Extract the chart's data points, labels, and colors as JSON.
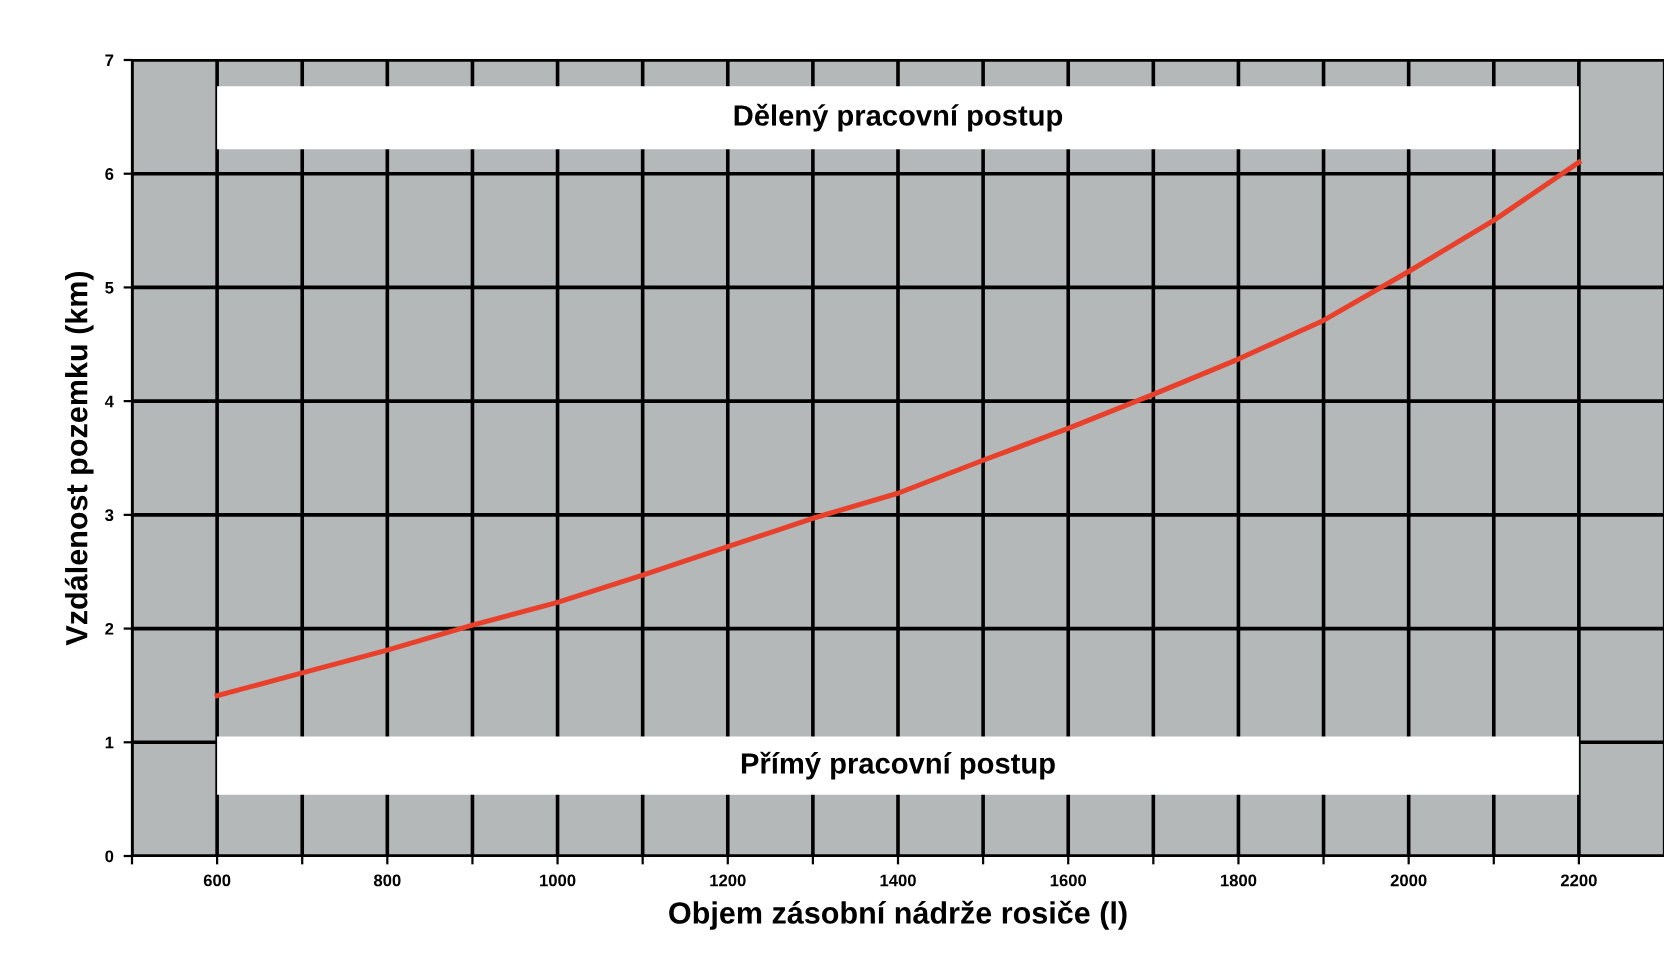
{
  "chart_data": {
    "type": "line",
    "xlabel": "Objem zásobní nádrže rosiče (l)",
    "ylabel": "Vzdálenost pozemku (km)",
    "x": [
      600,
      700,
      800,
      900,
      1000,
      1100,
      1200,
      1300,
      1400,
      1500,
      1600,
      1700,
      1800,
      1900,
      2000,
      2100,
      2200
    ],
    "series": [
      {
        "color": "#e8402a",
        "values": [
          1.41,
          1.61,
          1.81,
          2.03,
          2.23,
          2.47,
          2.72,
          2.97,
          3.19,
          3.48,
          3.76,
          4.06,
          4.37,
          4.71,
          5.14,
          5.59,
          6.1
        ]
      }
    ],
    "xlim": [
      500,
      2300
    ],
    "xticks": [
      {
        "value": 500,
        "label": null
      },
      {
        "value": 600,
        "label": "600"
      },
      {
        "value": 700,
        "label": null
      },
      {
        "value": 800,
        "label": "800"
      },
      {
        "value": 900,
        "label": null
      },
      {
        "value": 1000,
        "label": "1000"
      },
      {
        "value": 1100,
        "label": null
      },
      {
        "value": 1200,
        "label": "1200"
      },
      {
        "value": 1300,
        "label": null
      },
      {
        "value": 1400,
        "label": "1400"
      },
      {
        "value": 1500,
        "label": null
      },
      {
        "value": 1600,
        "label": "1600"
      },
      {
        "value": 1700,
        "label": null
      },
      {
        "value": 1800,
        "label": "1800"
      },
      {
        "value": 1900,
        "label": null
      },
      {
        "value": 2000,
        "label": "2000"
      },
      {
        "value": 2100,
        "label": null
      },
      {
        "value": 2200,
        "label": "2200"
      }
    ],
    "ylim": [
      0,
      7
    ],
    "yticks": [
      0,
      1,
      2,
      3,
      4,
      5,
      6,
      7
    ],
    "annotations": [
      "Dělený pracovní postup",
      "Přímý pracovní postup"
    ],
    "grid": true,
    "marker": "none",
    "line_style": "solid"
  }
}
